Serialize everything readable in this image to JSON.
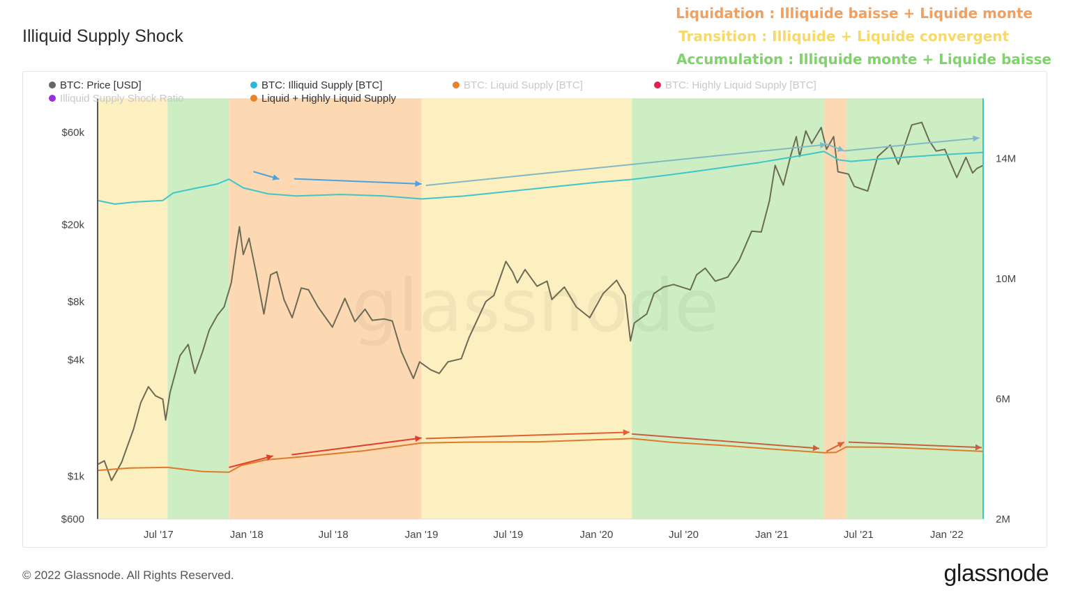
{
  "header": {
    "title": "Illiquid Supply Shock",
    "phases": [
      {
        "text": "Liquidation : Illiquide baisse + Liquide monte",
        "color": "#f0a060"
      },
      {
        "text": "Transition : Illiquide + Liquide convergent",
        "color": "#f5d96a"
      },
      {
        "text": "Accumulation : Illiquide monte + Liquide baisse",
        "color": "#7fd36a"
      }
    ]
  },
  "footer": {
    "copyright": "© 2022 Glassnode. All Rights Reserved.",
    "logo": "glassnode"
  },
  "watermark": "glassnode",
  "chart_data": {
    "type": "line",
    "x_ticks": [
      "Jul '17",
      "Jan '18",
      "Jul '18",
      "Jan '19",
      "Jul '19",
      "Jan '20",
      "Jul '20",
      "Jan '21",
      "Jul '21",
      "Jan '22"
    ],
    "x_tick_dates": [
      "2017-07-01",
      "2018-01-01",
      "2018-07-01",
      "2019-01-01",
      "2019-07-01",
      "2020-01-01",
      "2020-07-01",
      "2021-01-01",
      "2021-07-01",
      "2022-01-01"
    ],
    "xlim": [
      "2017-02-24",
      "2022-03-18"
    ],
    "y_left": {
      "scale": "log",
      "ticks": [
        "$600",
        "$1k",
        "$4k",
        "$8k",
        "$20k",
        "$60k"
      ],
      "tick_values": [
        600,
        1000,
        4000,
        8000,
        20000,
        60000
      ],
      "range": [
        600,
        90000
      ]
    },
    "y_right": {
      "scale": "linear",
      "ticks": [
        "2M",
        "6M",
        "10M",
        "14M"
      ],
      "tick_values": [
        2000000,
        6000000,
        10000000,
        14000000
      ],
      "range": [
        2000000,
        16000000
      ]
    },
    "legend": [
      {
        "name": "BTC: Price [USD]",
        "color": "#666666",
        "active": true
      },
      {
        "name": "BTC: Illiquid Supply [BTC]",
        "color": "#2bb7d8",
        "active": true
      },
      {
        "name": "BTC: Liquid Supply [BTC]",
        "color": "#e8832a",
        "active": false
      },
      {
        "name": "BTC: Highly Liquid Supply [BTC]",
        "color": "#e0204f",
        "active": false
      },
      {
        "name": "Illiquid Supply Shock Ratio",
        "color": "#9b30e0",
        "active": false
      },
      {
        "name": "Liquid + Highly Liquid Supply",
        "color": "#e8832a",
        "active": true
      }
    ],
    "phase_bands": [
      {
        "phase": "transition",
        "start": "2017-02-24",
        "end": "2017-07-20",
        "color": "#fcefc0"
      },
      {
        "phase": "accumulation",
        "start": "2017-07-20",
        "end": "2017-11-25",
        "color": "#cdeec3"
      },
      {
        "phase": "liquidation",
        "start": "2017-11-25",
        "end": "2019-01-01",
        "color": "#fcd9b3"
      },
      {
        "phase": "transition",
        "start": "2019-01-01",
        "end": "2020-03-15",
        "color": "#fcefc0"
      },
      {
        "phase": "accumulation",
        "start": "2020-03-15",
        "end": "2021-04-20",
        "color": "#cdeec3"
      },
      {
        "phase": "liquidation",
        "start": "2021-04-20",
        "end": "2021-06-05",
        "color": "#fcd9b3"
      },
      {
        "phase": "accumulation",
        "start": "2021-06-05",
        "end": "2022-03-18",
        "color": "#cdeec3"
      }
    ],
    "series": [
      {
        "name": "BTC: Price [USD]",
        "axis": "left",
        "color": "#6b6b55",
        "points": [
          [
            "2017-02-24",
            1150
          ],
          [
            "2017-03-10",
            1200
          ],
          [
            "2017-03-25",
            950
          ],
          [
            "2017-04-15",
            1180
          ],
          [
            "2017-05-10",
            1750
          ],
          [
            "2017-05-25",
            2400
          ],
          [
            "2017-06-10",
            2900
          ],
          [
            "2017-06-25",
            2600
          ],
          [
            "2017-07-10",
            2500
          ],
          [
            "2017-07-16",
            1950
          ],
          [
            "2017-07-25",
            2700
          ],
          [
            "2017-08-15",
            4200
          ],
          [
            "2017-09-01",
            4800
          ],
          [
            "2017-09-15",
            3400
          ],
          [
            "2017-10-01",
            4400
          ],
          [
            "2017-10-15",
            5700
          ],
          [
            "2017-11-01",
            6800
          ],
          [
            "2017-11-15",
            7500
          ],
          [
            "2017-11-30",
            10000
          ],
          [
            "2017-12-10",
            15000
          ],
          [
            "2017-12-17",
            19500
          ],
          [
            "2017-12-25",
            14000
          ],
          [
            "2018-01-06",
            17000
          ],
          [
            "2018-01-20",
            11500
          ],
          [
            "2018-02-06",
            6900
          ],
          [
            "2018-02-20",
            11000
          ],
          [
            "2018-03-05",
            11400
          ],
          [
            "2018-03-20",
            8200
          ],
          [
            "2018-04-06",
            6600
          ],
          [
            "2018-04-25",
            9400
          ],
          [
            "2018-05-10",
            9200
          ],
          [
            "2018-05-30",
            7500
          ],
          [
            "2018-06-29",
            5900
          ],
          [
            "2018-07-25",
            8300
          ],
          [
            "2018-08-15",
            6300
          ],
          [
            "2018-09-05",
            7300
          ],
          [
            "2018-09-20",
            6400
          ],
          [
            "2018-10-15",
            6500
          ],
          [
            "2018-11-01",
            6350
          ],
          [
            "2018-11-20",
            4400
          ],
          [
            "2018-12-15",
            3200
          ],
          [
            "2018-12-28",
            3900
          ],
          [
            "2019-01-20",
            3550
          ],
          [
            "2019-02-07",
            3400
          ],
          [
            "2019-02-25",
            3900
          ],
          [
            "2019-03-25",
            4050
          ],
          [
            "2019-04-10",
            5200
          ],
          [
            "2019-05-15",
            8000
          ],
          [
            "2019-06-01",
            8600
          ],
          [
            "2019-06-26",
            12900
          ],
          [
            "2019-07-10",
            11400
          ],
          [
            "2019-07-20",
            10000
          ],
          [
            "2019-08-05",
            11700
          ],
          [
            "2019-08-30",
            9600
          ],
          [
            "2019-09-20",
            10200
          ],
          [
            "2019-09-30",
            8200
          ],
          [
            "2019-10-26",
            9500
          ],
          [
            "2019-11-20",
            7500
          ],
          [
            "2019-12-18",
            6600
          ],
          [
            "2020-01-15",
            8800
          ],
          [
            "2020-02-12",
            10300
          ],
          [
            "2020-03-01",
            8600
          ],
          [
            "2020-03-12",
            5000
          ],
          [
            "2020-03-20",
            6200
          ],
          [
            "2020-04-15",
            6900
          ],
          [
            "2020-04-30",
            8800
          ],
          [
            "2020-05-20",
            9500
          ],
          [
            "2020-06-10",
            9800
          ],
          [
            "2020-07-15",
            9200
          ],
          [
            "2020-07-28",
            11000
          ],
          [
            "2020-08-15",
            11900
          ],
          [
            "2020-09-05",
            10200
          ],
          [
            "2020-10-01",
            10700
          ],
          [
            "2020-10-25",
            13100
          ],
          [
            "2020-11-20",
            18500
          ],
          [
            "2020-12-10",
            18300
          ],
          [
            "2020-12-27",
            26500
          ],
          [
            "2021-01-08",
            40500
          ],
          [
            "2021-01-25",
            32000
          ],
          [
            "2021-02-10",
            46000
          ],
          [
            "2021-02-21",
            57000
          ],
          [
            "2021-02-28",
            45000
          ],
          [
            "2021-03-13",
            61000
          ],
          [
            "2021-03-25",
            52500
          ],
          [
            "2021-04-14",
            63500
          ],
          [
            "2021-04-25",
            49000
          ],
          [
            "2021-05-10",
            57000
          ],
          [
            "2021-05-19",
            37500
          ],
          [
            "2021-06-10",
            36500
          ],
          [
            "2021-06-22",
            31500
          ],
          [
            "2021-07-20",
            29800
          ],
          [
            "2021-08-10",
            45000
          ],
          [
            "2021-09-05",
            51500
          ],
          [
            "2021-09-22",
            41000
          ],
          [
            "2021-10-20",
            65500
          ],
          [
            "2021-11-10",
            67500
          ],
          [
            "2021-11-26",
            54000
          ],
          [
            "2021-12-10",
            48000
          ],
          [
            "2021-12-28",
            49000
          ],
          [
            "2022-01-22",
            35000
          ],
          [
            "2022-02-10",
            44500
          ],
          [
            "2022-02-24",
            37000
          ],
          [
            "2022-03-05",
            39000
          ],
          [
            "2022-03-18",
            40500
          ]
        ]
      },
      {
        "name": "BTC: Illiquid Supply [BTC]",
        "axis": "right",
        "color": "#3ec6c8",
        "points": [
          [
            "2017-02-24",
            12600
          ],
          [
            "2017-04-01",
            12480
          ],
          [
            "2017-05-15",
            12550
          ],
          [
            "2017-07-10",
            12600
          ],
          [
            "2017-08-01",
            12850
          ],
          [
            "2017-09-15",
            13000
          ],
          [
            "2017-11-01",
            13150
          ],
          [
            "2017-11-25",
            13310
          ],
          [
            "2017-12-25",
            13020
          ],
          [
            "2018-02-15",
            12820
          ],
          [
            "2018-04-15",
            12750
          ],
          [
            "2018-07-15",
            12800
          ],
          [
            "2018-10-15",
            12750
          ],
          [
            "2019-01-01",
            12650
          ],
          [
            "2019-04-01",
            12750
          ],
          [
            "2019-07-01",
            12900
          ],
          [
            "2019-10-01",
            13050
          ],
          [
            "2020-01-01",
            13200
          ],
          [
            "2020-03-15",
            13300
          ],
          [
            "2020-06-01",
            13450
          ],
          [
            "2020-09-01",
            13650
          ],
          [
            "2020-12-01",
            13850
          ],
          [
            "2021-02-15",
            14050
          ],
          [
            "2021-04-20",
            14230
          ],
          [
            "2021-05-20",
            13950
          ],
          [
            "2021-06-15",
            13900
          ],
          [
            "2021-09-01",
            14000
          ],
          [
            "2021-12-01",
            14100
          ],
          [
            "2022-03-18",
            14200
          ]
        ]
      },
      {
        "name": "Liquid + Highly Liquid Supply",
        "axis": "right",
        "color": "#e07a2a",
        "points": [
          [
            "2017-02-24",
            3620
          ],
          [
            "2017-05-01",
            3700
          ],
          [
            "2017-07-20",
            3720
          ],
          [
            "2017-10-01",
            3580
          ],
          [
            "2017-11-25",
            3560
          ],
          [
            "2017-12-20",
            3780
          ],
          [
            "2018-02-10",
            3970
          ],
          [
            "2018-05-01",
            4080
          ],
          [
            "2018-09-01",
            4270
          ],
          [
            "2019-01-01",
            4530
          ],
          [
            "2019-04-01",
            4560
          ],
          [
            "2019-09-01",
            4570
          ],
          [
            "2020-01-01",
            4640
          ],
          [
            "2020-03-15",
            4680
          ],
          [
            "2020-06-01",
            4560
          ],
          [
            "2020-10-01",
            4440
          ],
          [
            "2021-01-01",
            4330
          ],
          [
            "2021-04-20",
            4210
          ],
          [
            "2021-05-15",
            4220
          ],
          [
            "2021-06-05",
            4400
          ],
          [
            "2021-09-01",
            4390
          ],
          [
            "2021-12-01",
            4330
          ],
          [
            "2022-03-18",
            4250
          ]
        ]
      }
    ],
    "arrows": [
      {
        "color": "#4aa3e0",
        "from": [
          "2018-01-15",
          13560
        ],
        "to": [
          "2018-03-10",
          13310
        ]
      },
      {
        "color": "#4aa3e0",
        "from": [
          "2018-04-10",
          13320
        ],
        "to": [
          "2019-01-01",
          13150
        ]
      },
      {
        "color": "#80b8c8",
        "from": [
          "2019-01-10",
          13100
        ],
        "to": [
          "2021-04-25",
          14460
        ]
      },
      {
        "color": "#80b8c8",
        "from": [
          "2021-04-20",
          14500
        ],
        "to": [
          "2021-06-01",
          14250
        ]
      },
      {
        "color": "#80b8c8",
        "from": [
          "2021-06-01",
          14250
        ],
        "to": [
          "2022-03-10",
          14680
        ]
      },
      {
        "color": "#e03c28",
        "from": [
          "2017-11-25",
          3720
        ],
        "to": [
          "2018-02-25",
          4100
        ]
      },
      {
        "color": "#e03c28",
        "from": [
          "2018-04-05",
          4140
        ],
        "to": [
          "2019-01-01",
          4700
        ]
      },
      {
        "color": "#e06030",
        "from": [
          "2019-01-10",
          4680
        ],
        "to": [
          "2020-03-10",
          4890
        ]
      },
      {
        "color": "#c86040",
        "from": [
          "2020-03-15",
          4830
        ],
        "to": [
          "2021-04-10",
          4350
        ]
      },
      {
        "color": "#e06030",
        "from": [
          "2021-04-25",
          4250
        ],
        "to": [
          "2021-06-01",
          4560
        ]
      },
      {
        "color": "#c86040",
        "from": [
          "2021-06-10",
          4560
        ],
        "to": [
          "2022-03-15",
          4380
        ]
      }
    ]
  }
}
